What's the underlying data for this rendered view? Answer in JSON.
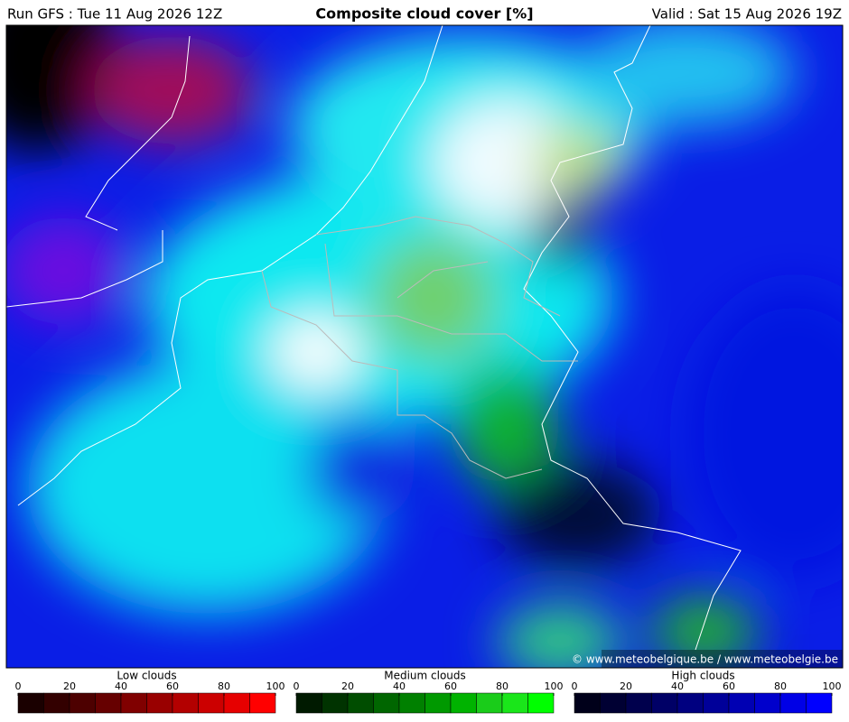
{
  "header": {
    "run": "Run GFS : Tue 11 Aug 2026 12Z",
    "title": "Composite cloud cover [%]",
    "valid": "Valid : Sat 15 Aug 2026 19Z"
  },
  "map": {
    "credit": "© www.meteobelgique.be / www.meteobelgie.be"
  },
  "legends": [
    {
      "title": "Low clouds",
      "ticks": [
        0,
        20,
        40,
        60,
        80,
        100
      ],
      "colors": [
        "#1a0000",
        "#330000",
        "#4d0000",
        "#660000",
        "#800000",
        "#990000",
        "#b30000",
        "#cc0000",
        "#e60000",
        "#ff0000"
      ]
    },
    {
      "title": "Medium clouds",
      "ticks": [
        0,
        20,
        40,
        60,
        80,
        100
      ],
      "colors": [
        "#001a00",
        "#003300",
        "#004d00",
        "#006600",
        "#008000",
        "#009900",
        "#00b300",
        "#1acc1a",
        "#1ae61a",
        "#00ff00"
      ]
    },
    {
      "title": "High clouds",
      "ticks": [
        0,
        20,
        40,
        60,
        80,
        100
      ],
      "colors": [
        "#00001a",
        "#000033",
        "#00004d",
        "#000066",
        "#000080",
        "#000099",
        "#0000b3",
        "#0000cc",
        "#0000e6",
        "#0000ff"
      ]
    }
  ]
}
